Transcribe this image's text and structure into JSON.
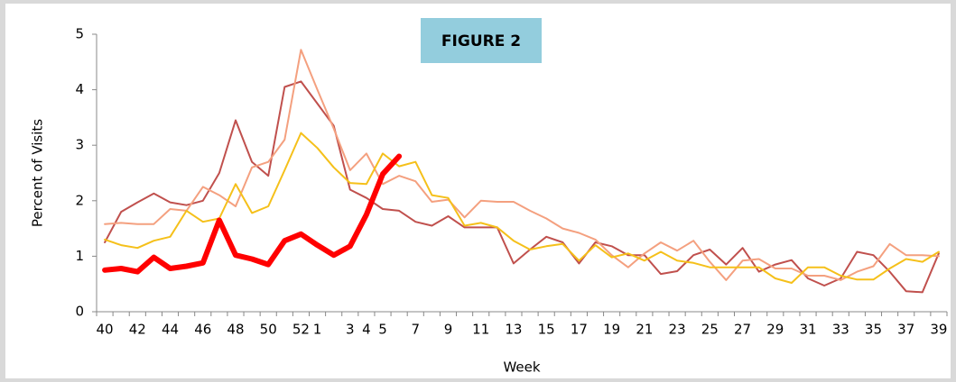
{
  "chart_data": {
    "type": "line",
    "title": "FIGURE 2",
    "x_label": "Week",
    "y_label": "Percent of Visits",
    "categories": [
      "40",
      null,
      "42",
      null,
      "44",
      null,
      "46",
      null,
      "48",
      null,
      "50",
      null,
      "52",
      "1",
      null,
      "3",
      "4",
      "5",
      null,
      "7",
      null,
      "9",
      null,
      "11",
      null,
      "13",
      null,
      "15",
      null,
      "17",
      null,
      "19",
      null,
      "21",
      null,
      "23",
      null,
      "25",
      null,
      "27",
      null,
      "29",
      null,
      "31",
      null,
      "33",
      null,
      "35",
      null,
      "37",
      null,
      "39"
    ],
    "ylim": [
      0,
      5
    ],
    "yticks": [
      0,
      1,
      2,
      3,
      4,
      5
    ],
    "grid": false,
    "series": [
      {
        "color": "#c0504d",
        "width": 2,
        "values": [
          1.25,
          1.8,
          1.97,
          2.13,
          1.97,
          1.92,
          2.0,
          2.5,
          3.45,
          2.7,
          2.45,
          4.05,
          4.15,
          3.75,
          3.35,
          2.2,
          2.05,
          1.85,
          1.82,
          1.62,
          1.55,
          1.72,
          1.52,
          1.52,
          1.52,
          0.87,
          1.12,
          1.35,
          1.25,
          0.87,
          1.25,
          1.18,
          1.02,
          1.02,
          0.68,
          0.73,
          1.02,
          1.12,
          0.85,
          1.15,
          0.72,
          0.85,
          0.93,
          0.6,
          0.47,
          0.6,
          1.08,
          1.02,
          0.72,
          0.37,
          0.35,
          1.05
        ]
      },
      {
        "color": "#f4a07f",
        "width": 2,
        "values": [
          1.58,
          1.6,
          1.58,
          1.58,
          1.85,
          1.82,
          2.25,
          2.1,
          1.9,
          2.6,
          2.7,
          3.1,
          4.72,
          4.0,
          3.3,
          2.55,
          2.85,
          2.3,
          2.45,
          2.35,
          1.98,
          2.02,
          1.7,
          2.0,
          1.98,
          1.98,
          1.82,
          1.68,
          1.5,
          1.42,
          1.3,
          1.02,
          0.8,
          1.05,
          1.25,
          1.1,
          1.28,
          0.9,
          0.57,
          0.92,
          0.95,
          0.78,
          0.78,
          0.65,
          0.65,
          0.57,
          0.72,
          0.82,
          1.22,
          1.02,
          1.02,
          1.0
        ]
      },
      {
        "color": "#f5c01a",
        "width": 2,
        "values": [
          1.3,
          1.2,
          1.15,
          1.28,
          1.35,
          1.82,
          1.62,
          1.68,
          2.3,
          1.78,
          1.9,
          2.55,
          3.22,
          2.95,
          2.6,
          2.32,
          2.3,
          2.85,
          2.62,
          2.7,
          2.1,
          2.05,
          1.55,
          1.6,
          1.52,
          1.28,
          1.12,
          1.18,
          1.22,
          0.92,
          1.2,
          0.98,
          1.05,
          0.92,
          1.08,
          0.92,
          0.88,
          0.8,
          0.8,
          0.8,
          0.8,
          0.6,
          0.52,
          0.8,
          0.8,
          0.65,
          0.58,
          0.58,
          0.78,
          0.95,
          0.9,
          1.08
        ]
      },
      {
        "color": "#ff0000",
        "width": 6,
        "values": [
          0.75,
          0.78,
          0.72,
          0.98,
          0.78,
          0.82,
          0.88,
          1.65,
          1.02,
          0.95,
          0.85,
          1.28,
          1.4,
          1.2,
          1.02,
          1.18,
          1.75,
          2.48,
          2.8,
          null,
          null,
          null,
          null,
          null,
          null,
          null,
          null,
          null,
          null,
          null,
          null,
          null,
          null,
          null,
          null,
          null,
          null,
          null,
          null,
          null,
          null,
          null,
          null,
          null,
          null,
          null,
          null,
          null,
          null,
          null,
          null,
          null
        ]
      }
    ]
  }
}
